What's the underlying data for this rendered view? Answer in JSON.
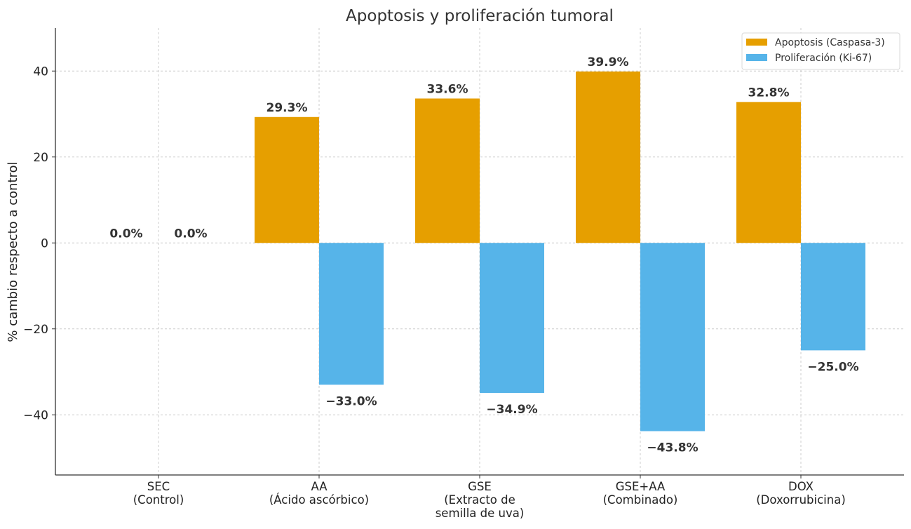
{
  "chart_data": {
    "type": "bar",
    "title": "Apoptosis y proliferación tumoral",
    "xlabel": "",
    "ylabel": "% cambio respecto a control",
    "ylim": [
      -54,
      50
    ],
    "yticks": [
      40,
      20,
      0,
      -20,
      -40
    ],
    "ytick_labels": [
      "40",
      "20",
      "0",
      "−20",
      "−40"
    ],
    "grid": true,
    "legend_position": "top-right",
    "categories": [
      [
        "SEC",
        "(Control)"
      ],
      [
        "AA",
        "(Ácido ascórbico)"
      ],
      [
        "GSE",
        "(Extracto de",
        "semilla de uva)"
      ],
      [
        "GSE+AA",
        "(Combinado)"
      ],
      [
        "DOX",
        "(Doxorrubicina)"
      ]
    ],
    "series": [
      {
        "name": "Apoptosis (Caspasa-3)",
        "color": "#E69F00",
        "values": [
          0.0,
          29.3,
          33.6,
          39.9,
          32.8
        ],
        "labels": [
          "0.0%",
          "29.3%",
          "33.6%",
          "39.9%",
          "32.8%"
        ]
      },
      {
        "name": "Proliferación (Ki-67)",
        "color": "#56B4E9",
        "values": [
          0.0,
          -33.0,
          -34.9,
          -43.8,
          -25.0
        ],
        "labels": [
          "0.0%",
          "−33.0%",
          "−34.9%",
          "−43.8%",
          "−25.0%"
        ]
      }
    ]
  }
}
